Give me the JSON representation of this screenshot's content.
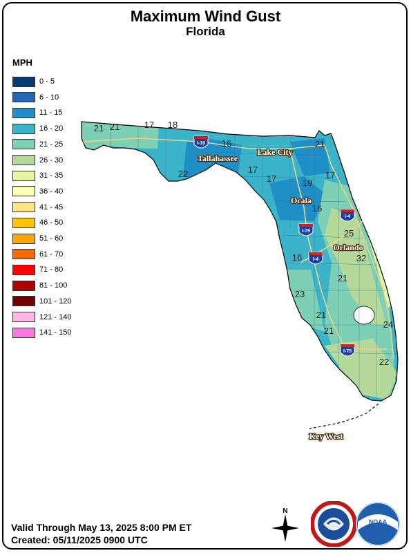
{
  "header": {
    "title": "Maximum Wind Gust",
    "subtitle": "Florida"
  },
  "legend": {
    "title": "MPH",
    "items": [
      {
        "label": "0 - 5",
        "color": "#0b3a6e"
      },
      {
        "label": "6 - 10",
        "color": "#2566b4"
      },
      {
        "label": "11 - 15",
        "color": "#1f8fc8"
      },
      {
        "label": "16 - 20",
        "color": "#3bb3c8"
      },
      {
        "label": "21 - 25",
        "color": "#7dcfb6"
      },
      {
        "label": "26 - 30",
        "color": "#b5d99b"
      },
      {
        "label": "31 - 35",
        "color": "#e6f5a0"
      },
      {
        "label": "36 - 40",
        "color": "#ffffb5"
      },
      {
        "label": "41 - 45",
        "color": "#ffe480"
      },
      {
        "label": "46 - 50",
        "color": "#ffc400"
      },
      {
        "label": "51 - 60",
        "color": "#ffa500"
      },
      {
        "label": "61 - 70",
        "color": "#ff6a00"
      },
      {
        "label": "71 - 80",
        "color": "#ff0000"
      },
      {
        "label": "81 - 100",
        "color": "#b00000"
      },
      {
        "label": "101 - 120",
        "color": "#700000"
      },
      {
        "label": "121 - 140",
        "color": "#ffb6e6"
      },
      {
        "label": "141 - 150",
        "color": "#ff77dd"
      }
    ]
  },
  "map": {
    "cities": [
      {
        "name": "Tallahassee"
      },
      {
        "name": "Lake City"
      },
      {
        "name": "Ocala"
      },
      {
        "name": "Orlando"
      },
      {
        "name": "Key West"
      }
    ],
    "interstates": [
      {
        "label": "I-10"
      },
      {
        "label": "I-75"
      },
      {
        "label": "I-4"
      },
      {
        "label": "I-4"
      },
      {
        "label": "I-75"
      }
    ],
    "gust_values": [
      "21",
      "21",
      "17",
      "18",
      "16",
      "21",
      "17",
      "22",
      "17",
      "19",
      "17",
      "16",
      "25",
      "32",
      "16",
      "21",
      "23",
      "21",
      "21",
      "24",
      "22"
    ]
  },
  "footer": {
    "valid": "Valid Through May 13, 2025 8:00 PM ET",
    "created": "Created: 05/11/2025 0900 UTC"
  },
  "logos": {
    "compass_letter": "N",
    "nws_text": "NATIONAL WEATHER SERVICE",
    "noaa_text": "NOAA"
  }
}
